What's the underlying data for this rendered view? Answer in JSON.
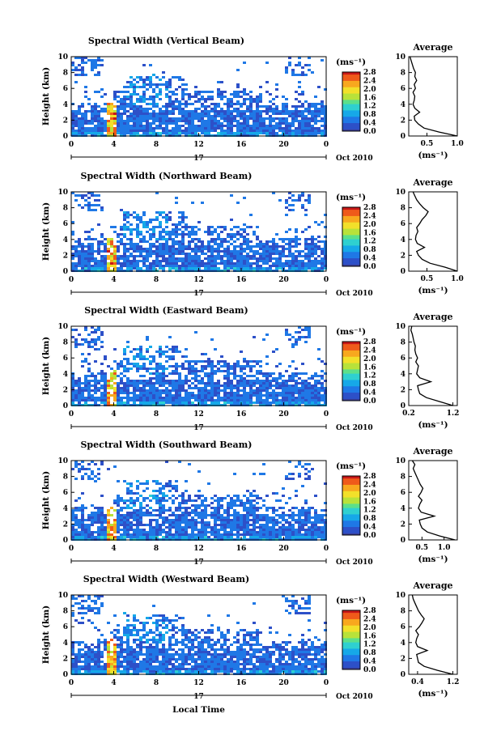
{
  "figure": {
    "date_label": "Oct 2010",
    "day_label": "17",
    "xlabel_bottom": "Local Time",
    "ylabel": "Height (km)",
    "profile_title": "Average",
    "units_label": "(ms⁻¹)",
    "colorbar_ticks": [
      "0.0",
      "0.4",
      "0.8",
      "1.2",
      "1.6",
      "2.0",
      "2.4",
      "2.8"
    ],
    "colormap": [
      "#3a3f9a",
      "#2d50c8",
      "#1f78e6",
      "#16a8e8",
      "#2fd0d0",
      "#5ce08a",
      "#b8e23a",
      "#f2e02a",
      "#f8a81e",
      "#ef5a1a",
      "#c81818"
    ]
  },
  "chart_data": [
    {
      "type": "heatmap",
      "title": "Spectral Width (Vertical Beam)",
      "ylabel": "Height (km)",
      "ylim": [
        0,
        10
      ],
      "yticks": [
        "0",
        "2",
        "4",
        "6",
        "8",
        "10"
      ],
      "xlim": [
        0,
        24
      ],
      "xticks": [
        "0",
        "4",
        "8",
        "12",
        "16",
        "20",
        "0"
      ],
      "colorbar": {
        "label": "(ms⁻¹)",
        "range": [
          0,
          2.8
        ]
      },
      "profile": {
        "title": "Average",
        "xlabel": "(ms⁻¹)",
        "xlim": [
          0.2,
          1.0
        ],
        "xticks": [
          "0.5",
          "1.0"
        ],
        "heights": [
          0,
          0.5,
          1,
          1.5,
          2,
          2.5,
          3,
          3.5,
          4,
          4.5,
          5,
          5.5,
          6,
          6.5,
          7,
          7.5,
          8,
          8.5,
          9,
          9.5,
          10
        ],
        "values": [
          1.0,
          0.7,
          0.45,
          0.36,
          0.3,
          0.29,
          0.38,
          0.3,
          0.27,
          0.29,
          0.3,
          0.27,
          0.31,
          0.29,
          0.33,
          0.3,
          0.31,
          0.28,
          0.26,
          0.24,
          0.22
        ]
      }
    },
    {
      "type": "heatmap",
      "title": "Spectral Width (Northward Beam)",
      "ylabel": "Height (km)",
      "ylim": [
        0,
        10
      ],
      "yticks": [
        "0",
        "2",
        "4",
        "6",
        "8",
        "10"
      ],
      "xlim": [
        0,
        24
      ],
      "xticks": [
        "0",
        "4",
        "8",
        "12",
        "16",
        "20",
        "0"
      ],
      "colorbar": {
        "label": "(ms⁻¹)",
        "range": [
          0,
          2.8
        ]
      },
      "profile": {
        "title": "Average",
        "xlabel": "(ms⁻¹)",
        "xlim": [
          0.2,
          1.0
        ],
        "xticks": [
          "0.5",
          "1.0"
        ],
        "heights": [
          0,
          0.5,
          1,
          1.5,
          2,
          2.5,
          3,
          3.5,
          4,
          4.5,
          5,
          5.5,
          6,
          6.5,
          7,
          7.5,
          8,
          8.5,
          9,
          9.5,
          10
        ],
        "values": [
          1.0,
          0.8,
          0.55,
          0.42,
          0.36,
          0.33,
          0.46,
          0.34,
          0.31,
          0.32,
          0.35,
          0.33,
          0.38,
          0.42,
          0.48,
          0.52,
          0.44,
          0.38,
          0.33,
          0.3,
          0.27
        ]
      }
    },
    {
      "type": "heatmap",
      "title": "Spectral Width (Eastward Beam)",
      "ylabel": "Height (km)",
      "ylim": [
        0,
        10
      ],
      "yticks": [
        "0",
        "2",
        "4",
        "6",
        "8",
        "10"
      ],
      "xlim": [
        0,
        24
      ],
      "xticks": [
        "0",
        "4",
        "8",
        "12",
        "16",
        "20",
        "0"
      ],
      "colorbar": {
        "label": "(ms⁻¹)",
        "range": [
          0,
          2.8
        ]
      },
      "profile": {
        "title": "Average",
        "xlabel": "(ms⁻¹)",
        "xlim": [
          0.2,
          1.3
        ],
        "xticks": [
          "0.2",
          "1.2"
        ],
        "heights": [
          0,
          0.5,
          1,
          1.5,
          2,
          2.5,
          3,
          3.5,
          4,
          4.5,
          5,
          5.5,
          6,
          6.5,
          7,
          7.5,
          8,
          8.5,
          9,
          9.5,
          10
        ],
        "values": [
          1.2,
          0.9,
          0.6,
          0.45,
          0.42,
          0.4,
          0.7,
          0.45,
          0.38,
          0.4,
          0.42,
          0.36,
          0.4,
          0.36,
          0.34,
          0.35,
          0.32,
          0.3,
          0.28,
          0.25,
          0.27
        ]
      }
    },
    {
      "type": "heatmap",
      "title": "Spectral Width (Southward Beam)",
      "ylabel": "Height (km)",
      "ylim": [
        0,
        10
      ],
      "yticks": [
        "0",
        "2",
        "4",
        "6",
        "8",
        "10"
      ],
      "xlim": [
        0,
        24
      ],
      "xticks": [
        "0",
        "4",
        "8",
        "12",
        "16",
        "20",
        "0"
      ],
      "colorbar": {
        "label": "(ms⁻¹)",
        "range": [
          0,
          2.8
        ]
      },
      "profile": {
        "title": "Average",
        "xlabel": "(ms⁻¹)",
        "xlim": [
          0.2,
          1.3
        ],
        "xticks": [
          "0.5",
          "1.0"
        ],
        "heights": [
          0,
          0.5,
          1,
          1.5,
          2,
          2.5,
          3,
          3.5,
          4,
          4.5,
          5,
          5.5,
          6,
          6.5,
          7,
          7.5,
          8,
          8.5,
          9,
          9.5,
          10
        ],
        "values": [
          1.25,
          0.9,
          0.62,
          0.5,
          0.46,
          0.44,
          0.78,
          0.48,
          0.42,
          0.45,
          0.5,
          0.42,
          0.48,
          0.52,
          0.46,
          0.42,
          0.38,
          0.34,
          0.3,
          0.34,
          0.28
        ]
      }
    },
    {
      "type": "heatmap",
      "title": "Spectral Width (Westward Beam)",
      "ylabel": "Height (km)",
      "ylim": [
        0,
        10
      ],
      "yticks": [
        "0",
        "2",
        "4",
        "6",
        "8",
        "10"
      ],
      "xlim": [
        0,
        24
      ],
      "xticks": [
        "0",
        "4",
        "8",
        "12",
        "16",
        "20",
        "0"
      ],
      "colorbar": {
        "label": "(ms⁻¹)",
        "range": [
          0,
          2.8
        ]
      },
      "profile": {
        "title": "Average",
        "xlabel": "(ms⁻¹)",
        "xlim": [
          0.2,
          1.3
        ],
        "xticks": [
          "0.4",
          "1.2"
        ],
        "heights": [
          0,
          0.5,
          1,
          1.5,
          2,
          2.5,
          3,
          3.5,
          4,
          4.5,
          5,
          5.5,
          6,
          6.5,
          7,
          7.5,
          8,
          8.5,
          9,
          9.5,
          10
        ],
        "values": [
          1.2,
          0.85,
          0.55,
          0.42,
          0.4,
          0.38,
          0.62,
          0.4,
          0.36,
          0.38,
          0.42,
          0.36,
          0.44,
          0.5,
          0.55,
          0.48,
          0.42,
          0.38,
          0.34,
          0.3,
          0.28
        ]
      }
    }
  ]
}
